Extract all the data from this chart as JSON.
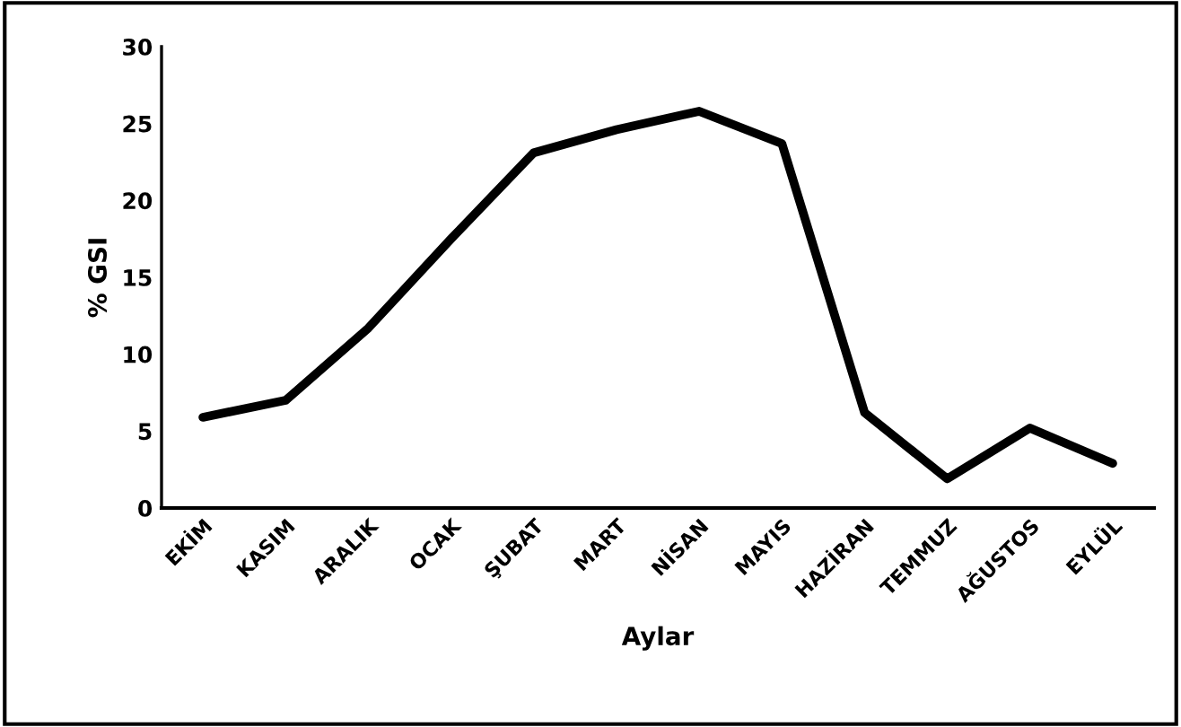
{
  "chart_data": {
    "type": "line",
    "xlabel": "Aylar",
    "ylabel": "% GSI",
    "categories": [
      "EKİM",
      "KASIM",
      "ARALIK",
      "OCAK",
      "ŞUBAT",
      "MART",
      "NİSAN",
      "MAYIS",
      "HAZİRAN",
      "TEMMUZ",
      "AĞUSTOS",
      "EYLÜL"
    ],
    "series": [
      {
        "color": "#000000",
        "values": [
          5.9,
          7.0,
          11.7,
          17.5,
          23.1,
          24.6,
          25.8,
          23.7,
          6.2,
          1.9,
          5.2,
          2.9
        ]
      }
    ],
    "ylim": [
      0,
      30
    ],
    "yticks": [
      0,
      5,
      10,
      15,
      20,
      25,
      30
    ],
    "grid": false,
    "legend": false,
    "marker": "none",
    "line_style": "solid"
  }
}
